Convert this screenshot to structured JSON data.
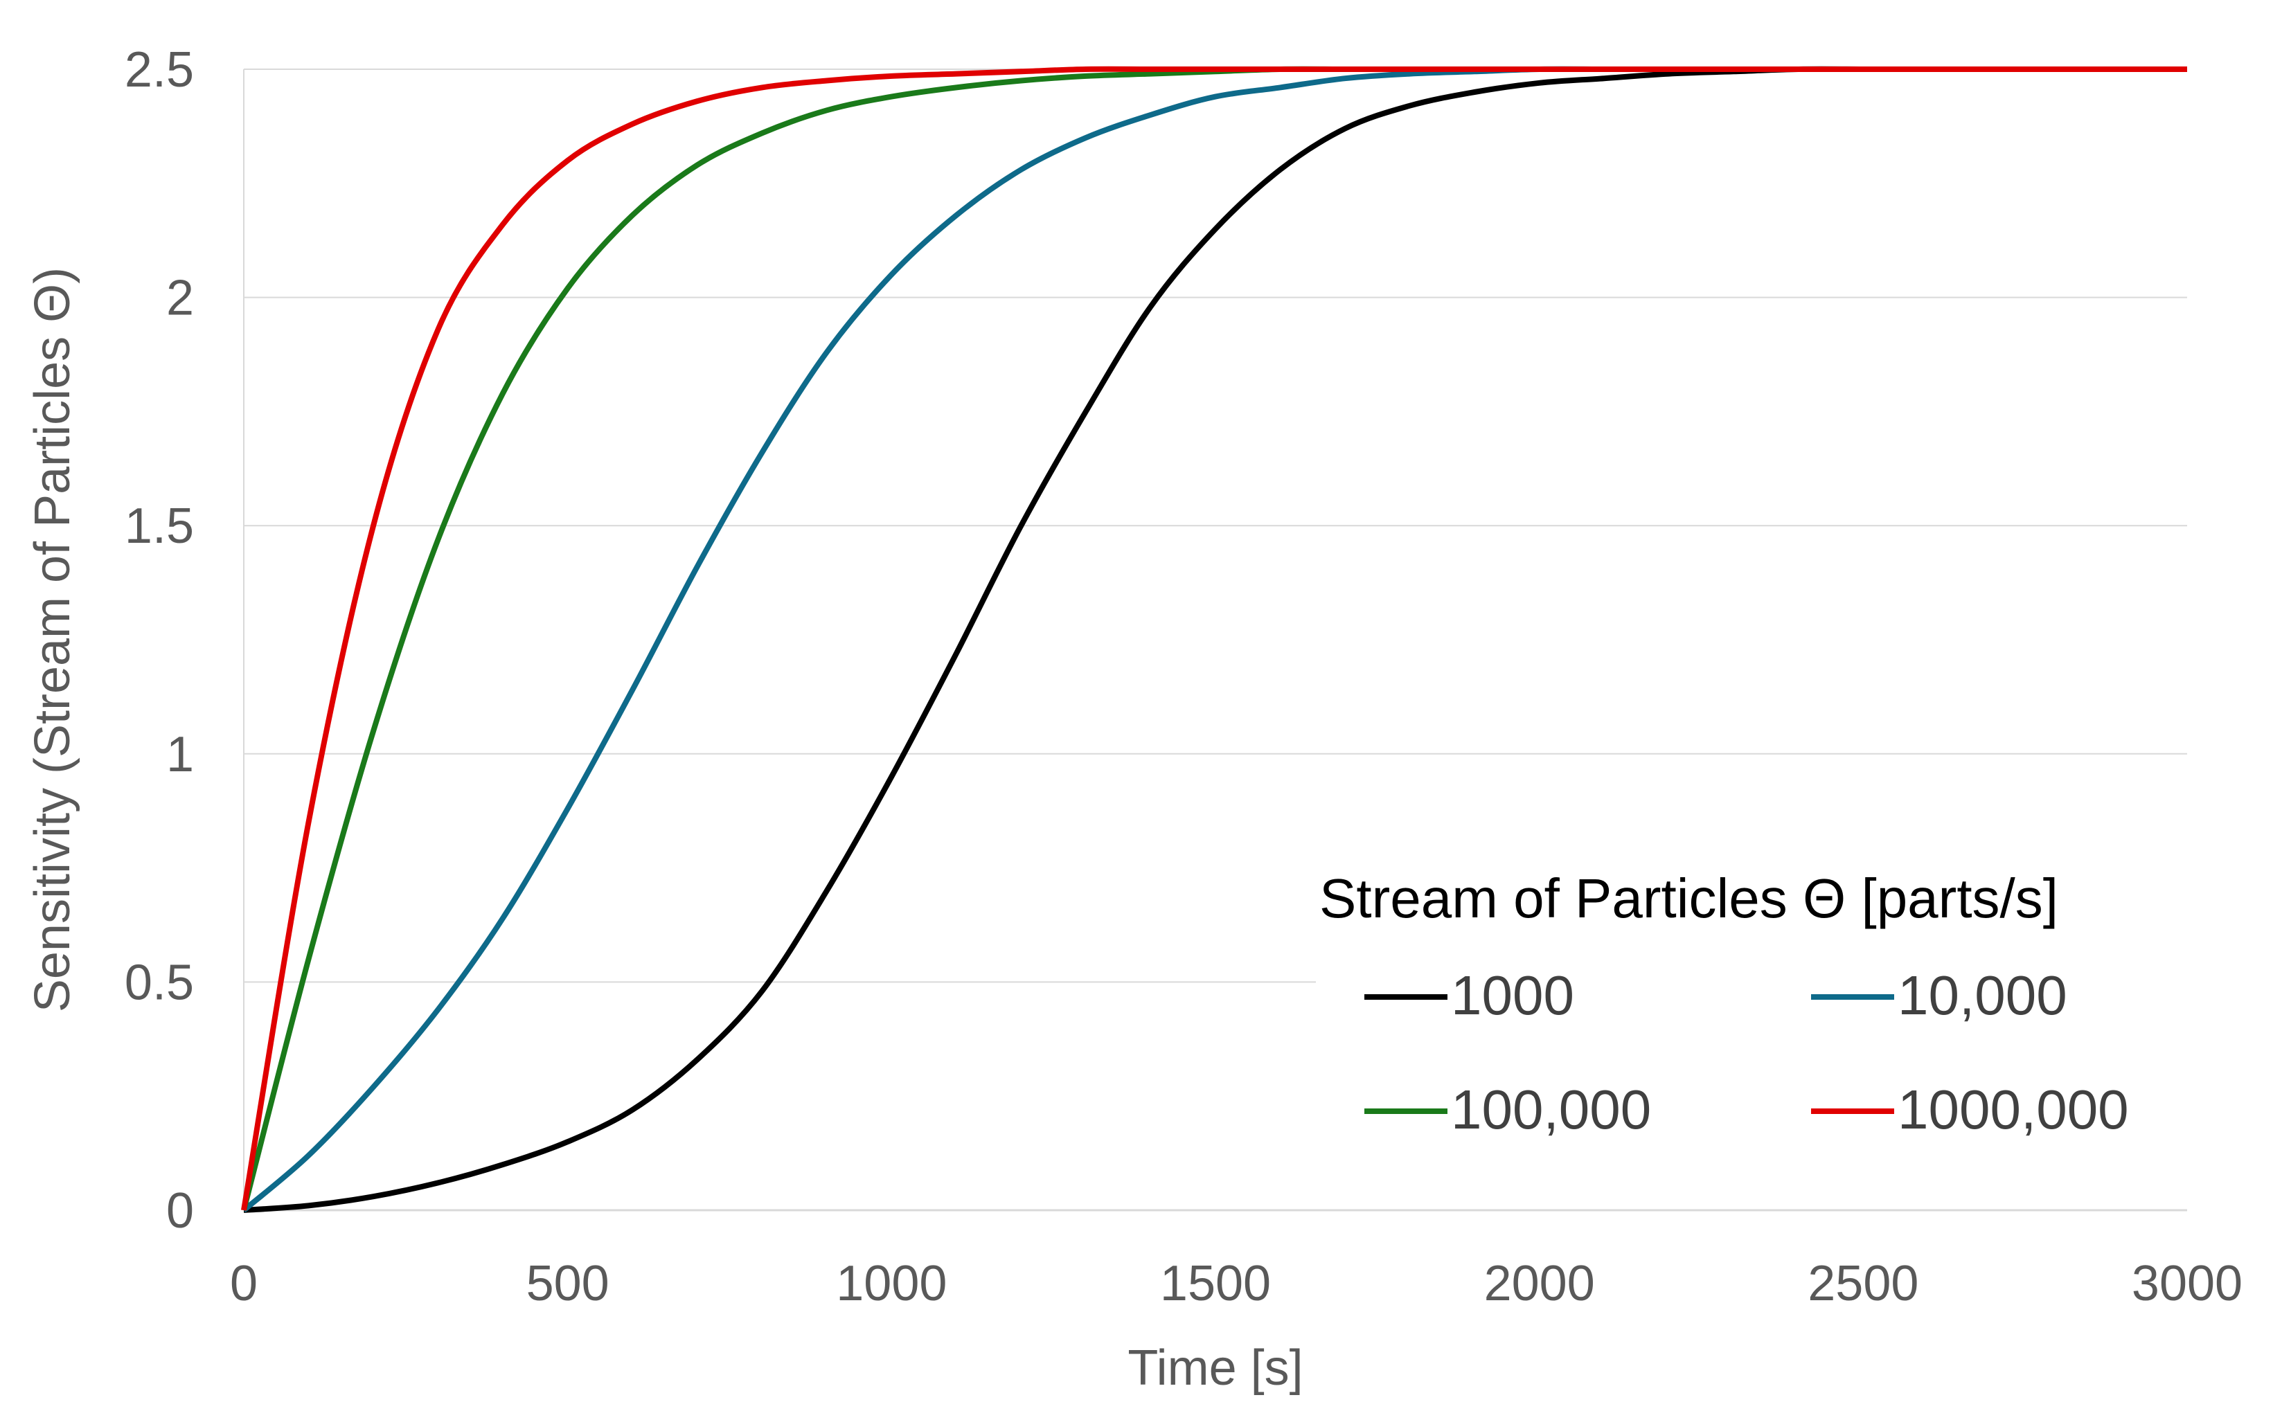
{
  "chart_data": {
    "type": "line",
    "title": "",
    "xlabel": "Time [s]",
    "ylabel": "Sensitivity (Stream of Particles Θ)",
    "xlim": [
      0,
      3000
    ],
    "ylim": [
      0,
      2.5
    ],
    "x_ticks": [
      0,
      500,
      1000,
      1500,
      2000,
      2500,
      3000
    ],
    "x_tick_labels": [
      "0",
      "500",
      "1000",
      "1500",
      "2000",
      "2500",
      "3000"
    ],
    "y_ticks": [
      0,
      0.5,
      1,
      1.5,
      2,
      2.5
    ],
    "y_tick_labels": [
      "0",
      "0.5",
      "1",
      "1.5",
      "2",
      "2.5"
    ],
    "grid": "horizontal",
    "legend": {
      "title": "Stream of Particles Θ [parts/s]",
      "placement": "bottom-right",
      "columns": 2
    },
    "x": [
      0,
      100,
      200,
      300,
      400,
      500,
      600,
      700,
      800,
      900,
      1000,
      1100,
      1200,
      1300,
      1400,
      1500,
      1600,
      1700,
      1800,
      1900,
      2000,
      2100,
      2200,
      2300,
      2400,
      2500,
      2600,
      2700,
      2800,
      2900,
      3000
    ],
    "series": [
      {
        "name": "1000",
        "color": "#000000",
        "values": [
          0,
          0.01,
          0.03,
          0.06,
          0.1,
          0.15,
          0.22,
          0.33,
          0.48,
          0.7,
          0.95,
          1.22,
          1.5,
          1.75,
          1.98,
          2.15,
          2.28,
          2.37,
          2.42,
          2.45,
          2.47,
          2.48,
          2.49,
          2.495,
          2.5,
          2.5,
          2.5,
          2.5,
          2.5,
          2.5,
          2.5
        ]
      },
      {
        "name": "10,000",
        "color": "#0e6a8a",
        "values": [
          0,
          0.12,
          0.27,
          0.44,
          0.64,
          0.88,
          1.14,
          1.41,
          1.66,
          1.88,
          2.05,
          2.18,
          2.28,
          2.35,
          2.4,
          2.44,
          2.46,
          2.48,
          2.49,
          2.495,
          2.5,
          2.5,
          2.5,
          2.5,
          2.5,
          2.5,
          2.5,
          2.5,
          2.5,
          2.5,
          2.5
        ]
      },
      {
        "name": "100,000",
        "color": "#1a7a1a",
        "values": [
          0,
          0.55,
          1.05,
          1.47,
          1.79,
          2.02,
          2.18,
          2.29,
          2.36,
          2.41,
          2.44,
          2.46,
          2.475,
          2.485,
          2.49,
          2.495,
          2.5,
          2.5,
          2.5,
          2.5,
          2.5,
          2.5,
          2.5,
          2.5,
          2.5,
          2.5,
          2.5,
          2.5,
          2.5,
          2.5,
          2.5
        ]
      },
      {
        "name": "1000,000",
        "color": "#e00000",
        "values": [
          0,
          0.85,
          1.5,
          1.93,
          2.16,
          2.3,
          2.38,
          2.43,
          2.46,
          2.475,
          2.485,
          2.49,
          2.495,
          2.5,
          2.5,
          2.5,
          2.5,
          2.5,
          2.5,
          2.5,
          2.5,
          2.5,
          2.5,
          2.5,
          2.5,
          2.5,
          2.5,
          2.5,
          2.5,
          2.5,
          2.5
        ]
      }
    ]
  }
}
